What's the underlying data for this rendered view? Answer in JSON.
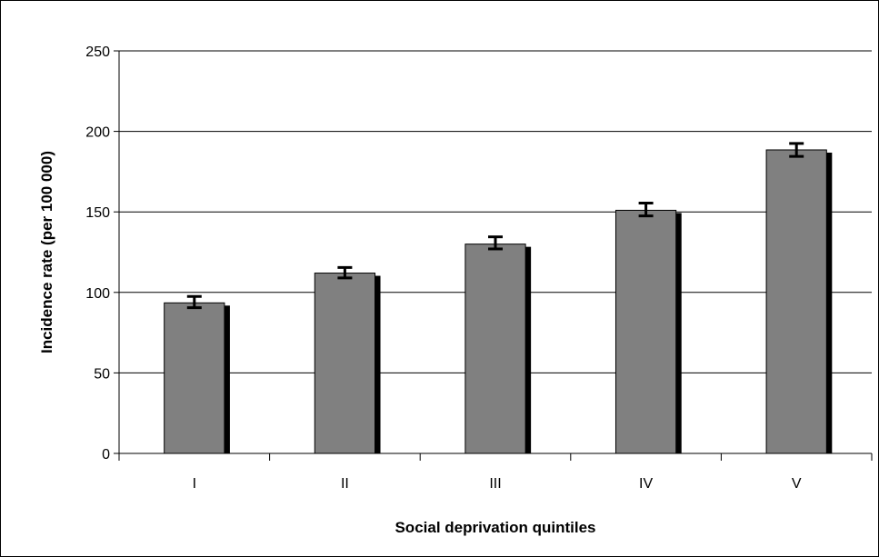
{
  "chart_data": {
    "type": "bar",
    "categories": [
      "I",
      "II",
      "III",
      "IV",
      "V"
    ],
    "values": [
      93.5,
      112,
      130,
      151,
      188.5
    ],
    "error_low": [
      90.5,
      109,
      127,
      147.5,
      184.5
    ],
    "error_high": [
      97.5,
      115.5,
      134.5,
      155.5,
      192.5
    ],
    "title": "",
    "xlabel": "Social deprivation quintiles",
    "ylabel": "Incidence rate (per 100 000)",
    "ylim": [
      0,
      250
    ],
    "yticks": [
      "0",
      "50",
      "100",
      "150",
      "200",
      "250"
    ],
    "grid": true,
    "legend": "none",
    "colors": {
      "bar": "#808080",
      "shadow": "#000000",
      "grid": "#000000",
      "frame": "#000000"
    }
  }
}
